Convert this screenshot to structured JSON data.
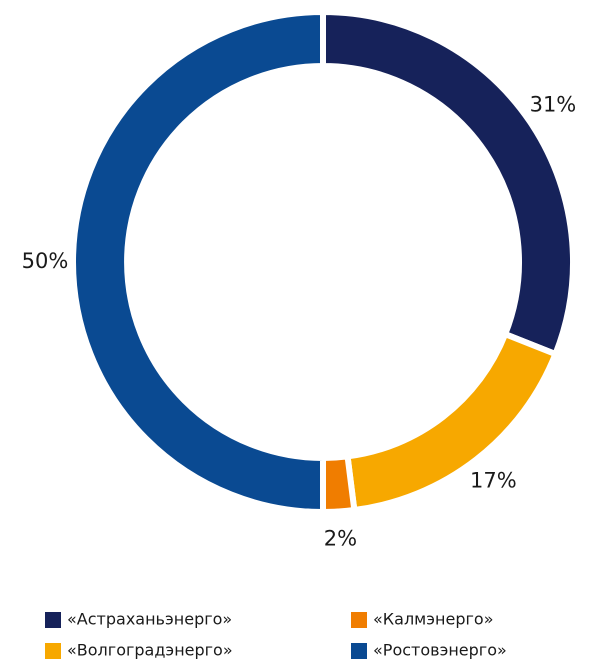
{
  "chart_data": {
    "type": "donut",
    "categories": [
      "«Астраханьэнерго»",
      "«Волгоградэнерго»",
      "«Калмэнерго»",
      "«Ростовэнерго»"
    ],
    "values": [
      31,
      17,
      2,
      50
    ],
    "value_labels": [
      "31%",
      "17%",
      "2%",
      "50%"
    ],
    "colors": [
      "#16225a",
      "#f7a800",
      "#f07d00",
      "#0a4a92"
    ]
  }
}
